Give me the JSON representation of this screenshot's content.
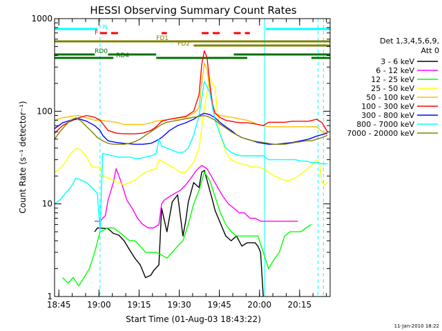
{
  "chart_data": {
    "type": "line",
    "title": "HESSI Observing Summary Count Rates",
    "xlabel": "Start Time (01-Aug-03 18:43:22)",
    "ylabel": "Count Rate (s⁻¹ detector⁻¹)",
    "yscale": "log",
    "ylim": [
      1,
      1000
    ],
    "xlim_min": [
      0,
      103
    ],
    "x_unit": "minutes after 18:43:22",
    "x_ticks": [
      {
        "label": "18:45",
        "t": 1.6
      },
      {
        "label": "19:00",
        "t": 16.6
      },
      {
        "label": "19:15",
        "t": 31.6
      },
      {
        "label": "19:30",
        "t": 46.6
      },
      {
        "label": "19:45",
        "t": 61.6
      },
      {
        "label": "20:00",
        "t": 76.6
      },
      {
        "label": "20:15",
        "t": 91.6
      }
    ],
    "y_ticks": [
      {
        "label": "1",
        "v": 1
      },
      {
        "label": "10",
        "v": 10
      },
      {
        "label": "100",
        "v": 100
      },
      {
        "label": "1000",
        "v": 1000
      }
    ],
    "grid": false,
    "legend_position": "right",
    "legend_header": [
      "Det 1,3,4,5,6,9,",
      "Att 0"
    ],
    "timestamp": "11-Jan-2010 18:22",
    "flags": [
      {
        "label": "N",
        "color": "#00ffff",
        "segments": [
          [
            0,
            16
          ],
          [
            79,
            103
          ]
        ]
      },
      {
        "label": "F",
        "color": "#ff0000",
        "segments": [
          [
            17,
            25
          ],
          [
            40,
            42
          ],
          [
            55,
            62
          ],
          [
            67,
            73
          ]
        ]
      },
      {
        "label": "FD1",
        "color": "#808000",
        "segments": [
          [
            0,
            103
          ]
        ]
      },
      {
        "label": "FD2",
        "color": "#808000",
        "segments": [
          [
            52,
            103
          ]
        ]
      },
      {
        "label": "RD0",
        "color": "#007000",
        "segments": [
          [
            0,
            15
          ],
          [
            20,
            38
          ],
          [
            67,
            103
          ]
        ]
      },
      {
        "label": "RD4",
        "color": "#007000",
        "segments": [
          [
            0,
            22
          ],
          [
            38,
            72
          ],
          [
            96,
            103
          ]
        ]
      }
    ],
    "vertical_markers": [
      {
        "t": 0,
        "color": "#00ffff",
        "style": "solid"
      },
      {
        "t": 17,
        "color": "#00ffff",
        "style": "dashed"
      },
      {
        "t": 78.5,
        "color": "#00ffff",
        "style": "solid"
      },
      {
        "t": 98.5,
        "color": "#00ffff",
        "style": "dashed"
      },
      {
        "t": 100.5,
        "color": "#00ffff",
        "style": "dashed"
      }
    ],
    "series": [
      {
        "name": "3 - 6 keV",
        "color": "#000000",
        "x": [
          15,
          16,
          20,
          22,
          24,
          26,
          28,
          30,
          32,
          34,
          36,
          37,
          39,
          40,
          42,
          44,
          46,
          48,
          49,
          50,
          52,
          54,
          55,
          56,
          57,
          58,
          59,
          60,
          64,
          66,
          68,
          70,
          72,
          73,
          75,
          76,
          77,
          78
        ],
        "y": [
          5,
          5.5,
          5.4,
          4.8,
          4.6,
          4,
          3.2,
          2.6,
          2.2,
          1.6,
          1.7,
          1.9,
          2.2,
          9,
          5,
          10.5,
          12.5,
          4.5,
          6.5,
          10.5,
          17,
          15,
          22,
          23,
          18,
          14,
          11,
          8.5,
          4.5,
          4,
          4.5,
          3.5,
          3.8,
          3.8,
          3.8,
          3.5,
          3,
          1
        ]
      },
      {
        "name": "6 - 12 keV",
        "color": "#ff00ff",
        "x": [
          15,
          17,
          19,
          20,
          22,
          23,
          25,
          27,
          29,
          31,
          33,
          35,
          37,
          39,
          40,
          41,
          43,
          45,
          47,
          49,
          51,
          53,
          55,
          57,
          59,
          61,
          63,
          65,
          67,
          69,
          71,
          73,
          75,
          77,
          79,
          81,
          83,
          85,
          87,
          89,
          91
        ],
        "y": [
          6.5,
          6.5,
          7.5,
          11,
          17,
          24,
          17,
          11,
          9,
          7,
          6,
          5.5,
          5.5,
          6,
          10,
          11,
          12,
          13,
          14,
          16,
          19,
          23,
          26,
          24,
          19,
          15,
          12,
          10,
          9,
          8,
          8,
          7,
          7,
          6.5,
          6.5,
          6.5,
          6.5,
          6.5,
          6.5,
          6.5,
          6.5
        ]
      },
      {
        "name": "12 - 25 keV",
        "color": "#00ff00",
        "x": [
          3,
          5,
          7,
          9,
          11,
          13,
          15,
          17,
          20,
          22,
          24,
          26,
          28,
          30,
          32,
          34,
          36,
          38,
          40,
          42,
          44,
          46,
          48,
          50,
          52,
          54,
          56,
          58,
          60,
          62,
          64,
          66,
          68,
          70,
          72,
          74,
          76,
          78,
          80,
          82,
          84,
          86,
          88,
          90,
          92,
          94,
          96
        ],
        "y": [
          1.6,
          1.4,
          1.6,
          1.3,
          1.6,
          2,
          3,
          5,
          5.5,
          5.5,
          5,
          4.5,
          4,
          4,
          3.5,
          3,
          3,
          3,
          2.8,
          2.6,
          3,
          3.5,
          4,
          6,
          10,
          14,
          22,
          18,
          12,
          8,
          6,
          5,
          4.5,
          4.5,
          4.5,
          4.5,
          4.5,
          3,
          2,
          2.5,
          3,
          4.5,
          5,
          5,
          5,
          5.5,
          6
        ]
      },
      {
        "name": "25 - 50 keV",
        "color": "#ffff00",
        "x": [
          0,
          2,
          4,
          6,
          8,
          10,
          12,
          14,
          16,
          17,
          18,
          20,
          22,
          24,
          26,
          28,
          30,
          32,
          34,
          36,
          38,
          39,
          41,
          43,
          45,
          47,
          49,
          50,
          52,
          54,
          56,
          58,
          60,
          61,
          62,
          64,
          66,
          68,
          70,
          72,
          74,
          76,
          78,
          80,
          82,
          84,
          86,
          88,
          90,
          92,
          94,
          96,
          98,
          99,
          100,
          101,
          102
        ],
        "y": [
          22,
          24,
          28,
          35,
          40,
          38,
          32,
          25,
          25,
          25,
          20,
          19,
          18,
          17,
          16,
          17,
          18,
          20,
          22,
          23,
          24,
          30,
          28,
          26,
          24,
          22,
          22,
          24,
          28,
          40,
          110,
          230,
          180,
          90,
          55,
          36,
          30,
          28,
          27,
          26,
          25,
          25,
          24,
          22,
          20,
          19,
          18,
          18,
          19,
          21,
          23,
          26,
          30,
          28,
          17,
          16,
          17
        ]
      },
      {
        "name": "50 - 100 keV",
        "color": "#ffbf00",
        "x": [
          0,
          3,
          6,
          9,
          12,
          15,
          17,
          20,
          23,
          26,
          30,
          33,
          36,
          38,
          40,
          43,
          46,
          49,
          52,
          54,
          55,
          56,
          57,
          58,
          59,
          60,
          62,
          64,
          66,
          68,
          70,
          72,
          74,
          76,
          78,
          80,
          83,
          86,
          89,
          92,
          95,
          98,
          100,
          102
        ],
        "y": [
          80,
          85,
          88,
          90,
          85,
          80,
          80,
          78,
          76,
          72,
          72,
          72,
          75,
          78,
          80,
          82,
          84,
          86,
          95,
          110,
          200,
          330,
          280,
          170,
          110,
          95,
          90,
          88,
          86,
          84,
          82,
          80,
          76,
          72,
          70,
          68,
          68,
          68,
          68,
          68,
          68,
          68,
          60,
          58
        ]
      },
      {
        "name": "100 - 300 keV",
        "color": "#ff0000",
        "x": [
          0,
          3,
          6,
          9,
          12,
          15,
          17,
          20,
          23,
          26,
          30,
          33,
          36,
          38,
          40,
          43,
          46,
          49,
          52,
          54,
          55,
          56,
          57,
          58,
          59,
          60,
          62,
          64,
          66,
          68,
          70,
          72,
          74,
          76,
          78,
          80,
          83,
          86,
          89,
          92,
          95,
          98,
          100,
          102
        ],
        "y": [
          58,
          70,
          78,
          85,
          90,
          86,
          80,
          62,
          58,
          57,
          57,
          58,
          62,
          68,
          78,
          82,
          85,
          88,
          100,
          150,
          320,
          450,
          380,
          200,
          120,
          95,
          85,
          80,
          78,
          76,
          75,
          75,
          74,
          72,
          70,
          76,
          76,
          76,
          78,
          78,
          78,
          82,
          75,
          60
        ]
      },
      {
        "name": "300 - 800 keV",
        "color": "#0000ff",
        "x": [
          0,
          3,
          6,
          9,
          12,
          15,
          17,
          18,
          20,
          23,
          26,
          30,
          33,
          36,
          38,
          40,
          43,
          46,
          49,
          52,
          54,
          56,
          58,
          60,
          62,
          64,
          66,
          68,
          70,
          72,
          74,
          76,
          78,
          80,
          83,
          86,
          89,
          92,
          95,
          98,
          100,
          102
        ],
        "y": [
          65,
          75,
          80,
          83,
          78,
          70,
          62,
          55,
          48,
          46,
          45,
          44,
          44,
          45,
          48,
          52,
          62,
          70,
          75,
          82,
          90,
          95,
          92,
          85,
          75,
          68,
          62,
          56,
          52,
          50,
          48,
          46,
          45,
          44,
          44,
          45,
          46,
          48,
          50,
          54,
          56,
          58
        ]
      },
      {
        "name": "800 - 7000 keV",
        "color": "#00ffff",
        "x": [
          0,
          2,
          4,
          6,
          8,
          10,
          12,
          14,
          16,
          17,
          18,
          20,
          22,
          24,
          26,
          28,
          30,
          32,
          34,
          36,
          38,
          39,
          40,
          42,
          44,
          46,
          48,
          50,
          52,
          54,
          56,
          58,
          60,
          62,
          64,
          66,
          68,
          70,
          72,
          74,
          76,
          78,
          80,
          82,
          84,
          86,
          88,
          90,
          92,
          94,
          96,
          98,
          100,
          102
        ],
        "y": [
          10,
          11,
          13,
          15,
          19,
          18,
          17,
          15,
          13,
          5,
          35,
          34,
          33,
          32,
          32,
          32,
          31,
          31,
          32,
          33,
          35,
          50,
          42,
          40,
          38,
          36,
          36,
          40,
          55,
          90,
          210,
          160,
          80,
          55,
          40,
          36,
          34,
          33,
          33,
          33,
          33,
          33,
          30,
          30,
          30,
          30,
          30,
          30,
          29,
          29,
          28,
          28,
          27,
          27
        ]
      },
      {
        "name": "7000 - 20000 keV",
        "color": "#808000",
        "x": [
          0,
          2,
          4,
          6,
          8,
          10,
          12,
          14,
          16,
          18,
          20,
          22,
          24,
          26,
          28,
          30,
          32,
          34,
          36,
          38,
          40,
          42,
          44,
          46,
          48,
          50,
          52,
          54,
          56,
          58,
          60,
          62,
          64,
          66,
          68,
          70,
          72,
          74,
          76,
          78,
          80,
          82,
          84,
          86,
          88,
          90,
          92,
          94,
          96,
          98,
          100,
          102
        ],
        "y": [
          50,
          60,
          70,
          80,
          85,
          78,
          68,
          60,
          52,
          48,
          45,
          44,
          44,
          44,
          45,
          47,
          50,
          55,
          60,
          66,
          72,
          76,
          78,
          80,
          82,
          84,
          86,
          88,
          90,
          86,
          80,
          72,
          66,
          60,
          56,
          52,
          50,
          48,
          47,
          46,
          45,
          44,
          44,
          44,
          45,
          46,
          47,
          48,
          48,
          50,
          52,
          55
        ]
      }
    ]
  }
}
